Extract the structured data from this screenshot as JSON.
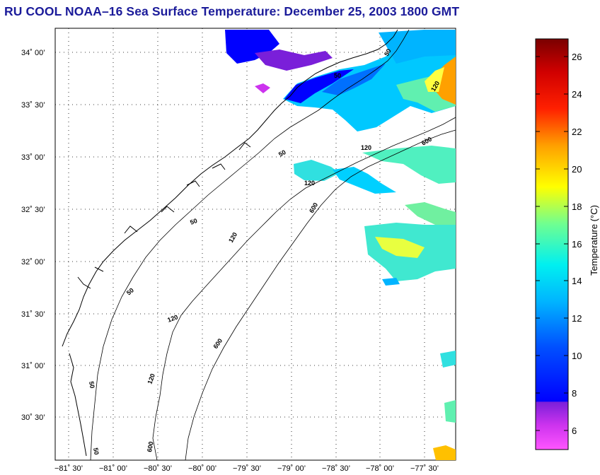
{
  "title": "RU COOL  NOAA–16  Sea Surface Temperature:  December 25, 2003 1800 GMT",
  "map": {
    "latitude_labels": [
      "34˚ 00’",
      "33˚ 30’",
      "33˚ 00’",
      "32˚ 30’",
      "32˚ 00’",
      "31˚ 30’",
      "31˚ 00’",
      "30˚ 30’"
    ],
    "longitude_labels": [
      "−81˚ 30’",
      "−81˚ 00’",
      "−80˚ 30’",
      "−80˚ 00’",
      "−79˚ 30’",
      "−79˚ 00’",
      "−78˚ 30’",
      "−78˚ 00’",
      "−77˚ 30’"
    ],
    "isobath_labels": [
      "50",
      "50",
      "50",
      "50",
      "50",
      "50",
      "50",
      "120",
      "120",
      "120",
      "120",
      "120",
      "120",
      "600",
      "600",
      "600",
      "600"
    ],
    "grid": "dotted"
  },
  "colorbar": {
    "ticks": [
      "6",
      "8",
      "10",
      "12",
      "14",
      "16",
      "18",
      "20",
      "22",
      "24",
      "26"
    ],
    "label": "Temperature (°C)",
    "range": [
      5,
      27
    ],
    "colors": [
      "#ff33ff",
      "#b300e6",
      "#0000ff",
      "#0080ff",
      "#00ffff",
      "#80ff80",
      "#ffff00",
      "#ff8000",
      "#ff0000",
      "#800000"
    ]
  }
}
